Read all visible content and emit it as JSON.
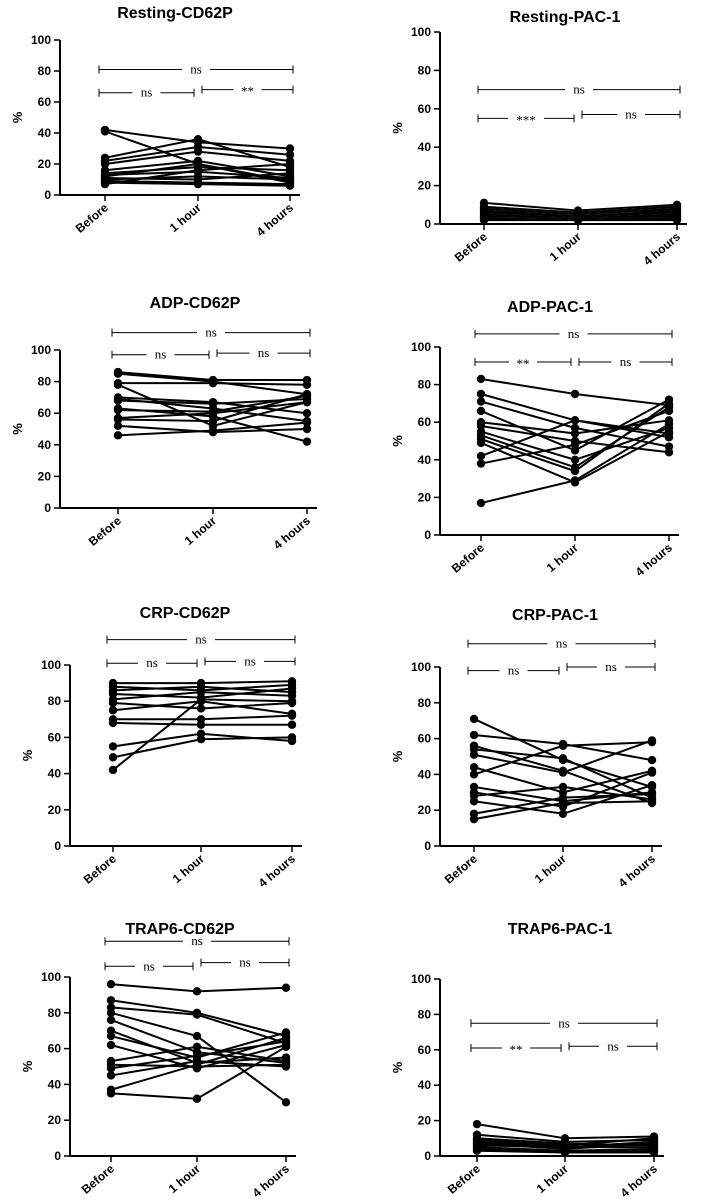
{
  "chart_data": [
    {
      "type": "line",
      "title": "Resting-CD62P",
      "ylabel": "%",
      "categories": [
        "Before",
        "1 hour",
        "4 hours"
      ],
      "ylim": [
        0,
        100
      ],
      "yticks": [
        0,
        20,
        40,
        60,
        80,
        100
      ],
      "series": [
        {
          "values": [
            42,
            34,
            30
          ]
        },
        {
          "values": [
            41,
            20,
            8
          ]
        },
        {
          "values": [
            24,
            36,
            18
          ]
        },
        {
          "values": [
            22,
            31,
            26
          ]
        },
        {
          "values": [
            20,
            28,
            22
          ]
        },
        {
          "values": [
            16,
            22,
            12
          ]
        },
        {
          "values": [
            14,
            18,
            16
          ]
        },
        {
          "values": [
            13,
            15,
            11
          ]
        },
        {
          "values": [
            12,
            20,
            9
          ]
        },
        {
          "values": [
            11,
            10,
            14
          ]
        },
        {
          "values": [
            10,
            12,
            10
          ]
        },
        {
          "values": [
            9,
            8,
            7
          ]
        },
        {
          "values": [
            8,
            7,
            6
          ]
        },
        {
          "values": [
            7,
            16,
            20
          ]
        }
      ],
      "comparisons": [
        {
          "from": 0,
          "to": 2,
          "label": "ns",
          "y": 81
        },
        {
          "from": 0,
          "to": 1,
          "label": "ns",
          "y": 66
        },
        {
          "from": 1,
          "to": 2,
          "label": "**",
          "y": 68
        }
      ]
    },
    {
      "type": "line",
      "title": "Resting-PAC-1",
      "ylabel": "%",
      "categories": [
        "Before",
        "1 hour",
        "4 hours"
      ],
      "ylim": [
        0,
        100
      ],
      "yticks": [
        0,
        20,
        40,
        60,
        80,
        100
      ],
      "series": [
        {
          "values": [
            11,
            7,
            10
          ]
        },
        {
          "values": [
            9,
            6,
            9
          ]
        },
        {
          "values": [
            8,
            5,
            8
          ]
        },
        {
          "values": [
            7,
            4,
            7
          ]
        },
        {
          "values": [
            6,
            4,
            6
          ]
        },
        {
          "values": [
            5,
            3,
            5
          ]
        },
        {
          "values": [
            4,
            3,
            4
          ]
        },
        {
          "values": [
            3,
            2,
            3
          ]
        },
        {
          "values": [
            2,
            2,
            2
          ]
        }
      ],
      "comparisons": [
        {
          "from": 0,
          "to": 2,
          "label": "ns",
          "y": 70
        },
        {
          "from": 0,
          "to": 1,
          "label": "***",
          "y": 55
        },
        {
          "from": 1,
          "to": 2,
          "label": "ns",
          "y": 57
        }
      ]
    },
    {
      "type": "line",
      "title": "ADP-CD62P",
      "ylabel": "%",
      "categories": [
        "Before",
        "1 hour",
        "4 hours"
      ],
      "ylim": [
        0,
        100
      ],
      "yticks": [
        0,
        20,
        40,
        60,
        80,
        100
      ],
      "series": [
        {
          "values": [
            86,
            81,
            81
          ]
        },
        {
          "values": [
            85,
            80,
            72
          ]
        },
        {
          "values": [
            79,
            79,
            78
          ]
        },
        {
          "values": [
            78,
            52,
            67
          ]
        },
        {
          "values": [
            70,
            67,
            60
          ]
        },
        {
          "values": [
            69,
            63,
            55
          ]
        },
        {
          "values": [
            68,
            66,
            69
          ]
        },
        {
          "values": [
            63,
            58,
            42
          ]
        },
        {
          "values": [
            62,
            61,
            71
          ]
        },
        {
          "values": [
            57,
            60,
            67
          ]
        },
        {
          "values": [
            56,
            55,
            72
          ]
        },
        {
          "values": [
            52,
            48,
            50
          ]
        },
        {
          "values": [
            46,
            49,
            54
          ]
        }
      ],
      "comparisons": [
        {
          "from": 0,
          "to": 2,
          "label": "ns",
          "y": 111
        },
        {
          "from": 0,
          "to": 1,
          "label": "ns",
          "y": 97
        },
        {
          "from": 1,
          "to": 2,
          "label": "ns",
          "y": 98
        }
      ]
    },
    {
      "type": "line",
      "title": "ADP-PAC-1",
      "ylabel": "%",
      "categories": [
        "Before",
        "1 hour",
        "4 hours"
      ],
      "ylim": [
        0,
        100
      ],
      "yticks": [
        0,
        20,
        40,
        60,
        80,
        100
      ],
      "series": [
        {
          "values": [
            83,
            75,
            69
          ]
        },
        {
          "values": [
            75,
            61,
            52
          ]
        },
        {
          "values": [
            71,
            57,
            47
          ]
        },
        {
          "values": [
            66,
            45,
            72
          ]
        },
        {
          "values": [
            60,
            54,
            61
          ]
        },
        {
          "values": [
            58,
            50,
            44
          ]
        },
        {
          "values": [
            55,
            40,
            57
          ]
        },
        {
          "values": [
            53,
            36,
            68
          ]
        },
        {
          "values": [
            51,
            34,
            70
          ]
        },
        {
          "values": [
            49,
            28,
            55
          ]
        },
        {
          "values": [
            42,
            61,
            54
          ]
        },
        {
          "values": [
            38,
            48,
            66
          ]
        },
        {
          "values": [
            17,
            29,
            59
          ]
        }
      ],
      "comparisons": [
        {
          "from": 0,
          "to": 2,
          "label": "ns",
          "y": 107
        },
        {
          "from": 0,
          "to": 1,
          "label": "**",
          "y": 92
        },
        {
          "from": 1,
          "to": 2,
          "label": "ns",
          "y": 92
        }
      ]
    },
    {
      "type": "line",
      "title": "CRP-CD62P",
      "ylabel": "%",
      "categories": [
        "Before",
        "1 hour",
        "4 hours"
      ],
      "ylim": [
        0,
        100
      ],
      "yticks": [
        0,
        20,
        40,
        60,
        80,
        100
      ],
      "series": [
        {
          "values": [
            90,
            90,
            91
          ]
        },
        {
          "values": [
            88,
            86,
            89
          ]
        },
        {
          "values": [
            86,
            88,
            85
          ]
        },
        {
          "values": [
            84,
            82,
            87
          ]
        },
        {
          "values": [
            81,
            85,
            83
          ]
        },
        {
          "values": [
            79,
            76,
            79
          ]
        },
        {
          "values": [
            75,
            80,
            73
          ]
        },
        {
          "values": [
            70,
            70,
            72
          ]
        },
        {
          "values": [
            68,
            67,
            67
          ]
        },
        {
          "values": [
            55,
            62,
            58
          ]
        },
        {
          "values": [
            49,
            59,
            60
          ]
        },
        {
          "values": [
            42,
            81,
            80
          ]
        }
      ],
      "comparisons": [
        {
          "from": 0,
          "to": 2,
          "label": "ns",
          "y": 114
        },
        {
          "from": 0,
          "to": 1,
          "label": "ns",
          "y": 101
        },
        {
          "from": 1,
          "to": 2,
          "label": "ns",
          "y": 102
        }
      ]
    },
    {
      "type": "line",
      "title": "CRP-PAC-1",
      "ylabel": "%",
      "categories": [
        "Before",
        "1 hour",
        "4 hours"
      ],
      "ylim": [
        0,
        100
      ],
      "yticks": [
        0,
        20,
        40,
        60,
        80,
        100
      ],
      "series": [
        {
          "values": [
            71,
            48,
            33
          ]
        },
        {
          "values": [
            62,
            57,
            48
          ]
        },
        {
          "values": [
            56,
            42,
            24
          ]
        },
        {
          "values": [
            54,
            49,
            27
          ]
        },
        {
          "values": [
            51,
            41,
            59
          ]
        },
        {
          "values": [
            44,
            30,
            42
          ]
        },
        {
          "values": [
            40,
            56,
            58
          ]
        },
        {
          "values": [
            33,
            25,
            30
          ]
        },
        {
          "values": [
            30,
            22,
            41
          ]
        },
        {
          "values": [
            28,
            33,
            26
          ]
        },
        {
          "values": [
            25,
            18,
            34
          ]
        },
        {
          "values": [
            18,
            27,
            29
          ]
        },
        {
          "values": [
            15,
            24,
            25
          ]
        }
      ],
      "comparisons": [
        {
          "from": 0,
          "to": 2,
          "label": "ns",
          "y": 113
        },
        {
          "from": 0,
          "to": 1,
          "label": "ns",
          "y": 98
        },
        {
          "from": 1,
          "to": 2,
          "label": "ns",
          "y": 100
        }
      ]
    },
    {
      "type": "line",
      "title": "TRAP6-CD62P",
      "ylabel": "%",
      "categories": [
        "Before",
        "1 hour",
        "4 hours"
      ],
      "ylim": [
        0,
        100
      ],
      "yticks": [
        0,
        20,
        40,
        60,
        80,
        100
      ],
      "series": [
        {
          "values": [
            96,
            92,
            94
          ]
        },
        {
          "values": [
            87,
            80,
            67
          ]
        },
        {
          "values": [
            83,
            79,
            63
          ]
        },
        {
          "values": [
            80,
            67,
            30
          ]
        },
        {
          "values": [
            76,
            58,
            52
          ]
        },
        {
          "values": [
            70,
            52,
            55
          ]
        },
        {
          "values": [
            67,
            55,
            69
          ]
        },
        {
          "values": [
            62,
            49,
            62
          ]
        },
        {
          "values": [
            53,
            61,
            53
          ]
        },
        {
          "values": [
            51,
            50,
            51
          ]
        },
        {
          "values": [
            49,
            56,
            64
          ]
        },
        {
          "values": [
            45,
            53,
            50
          ]
        },
        {
          "values": [
            37,
            51,
            66
          ]
        },
        {
          "values": [
            35,
            32,
            61
          ]
        }
      ],
      "comparisons": [
        {
          "from": 0,
          "to": 2,
          "label": "ns",
          "y": 120
        },
        {
          "from": 0,
          "to": 1,
          "label": "ns",
          "y": 106
        },
        {
          "from": 1,
          "to": 2,
          "label": "ns",
          "y": 108
        }
      ]
    },
    {
      "type": "line",
      "title": "TRAP6-PAC-1",
      "ylabel": "%",
      "categories": [
        "Before",
        "1 hour",
        "4 hours"
      ],
      "ylim": [
        0,
        100
      ],
      "yticks": [
        0,
        20,
        40,
        60,
        80,
        100
      ],
      "series": [
        {
          "values": [
            18,
            10,
            11
          ]
        },
        {
          "values": [
            12,
            8,
            9
          ]
        },
        {
          "values": [
            10,
            7,
            6
          ]
        },
        {
          "values": [
            9,
            6,
            10
          ]
        },
        {
          "values": [
            8,
            5,
            8
          ]
        },
        {
          "values": [
            7,
            4,
            7
          ]
        },
        {
          "values": [
            6,
            5,
            5
          ]
        },
        {
          "values": [
            5,
            3,
            4
          ]
        },
        {
          "values": [
            4,
            2,
            3
          ]
        },
        {
          "values": [
            3,
            2,
            2
          ]
        }
      ],
      "comparisons": [
        {
          "from": 0,
          "to": 2,
          "label": "ns",
          "y": 75
        },
        {
          "from": 0,
          "to": 1,
          "label": "**",
          "y": 61
        },
        {
          "from": 1,
          "to": 2,
          "label": "ns",
          "y": 62
        }
      ]
    }
  ]
}
